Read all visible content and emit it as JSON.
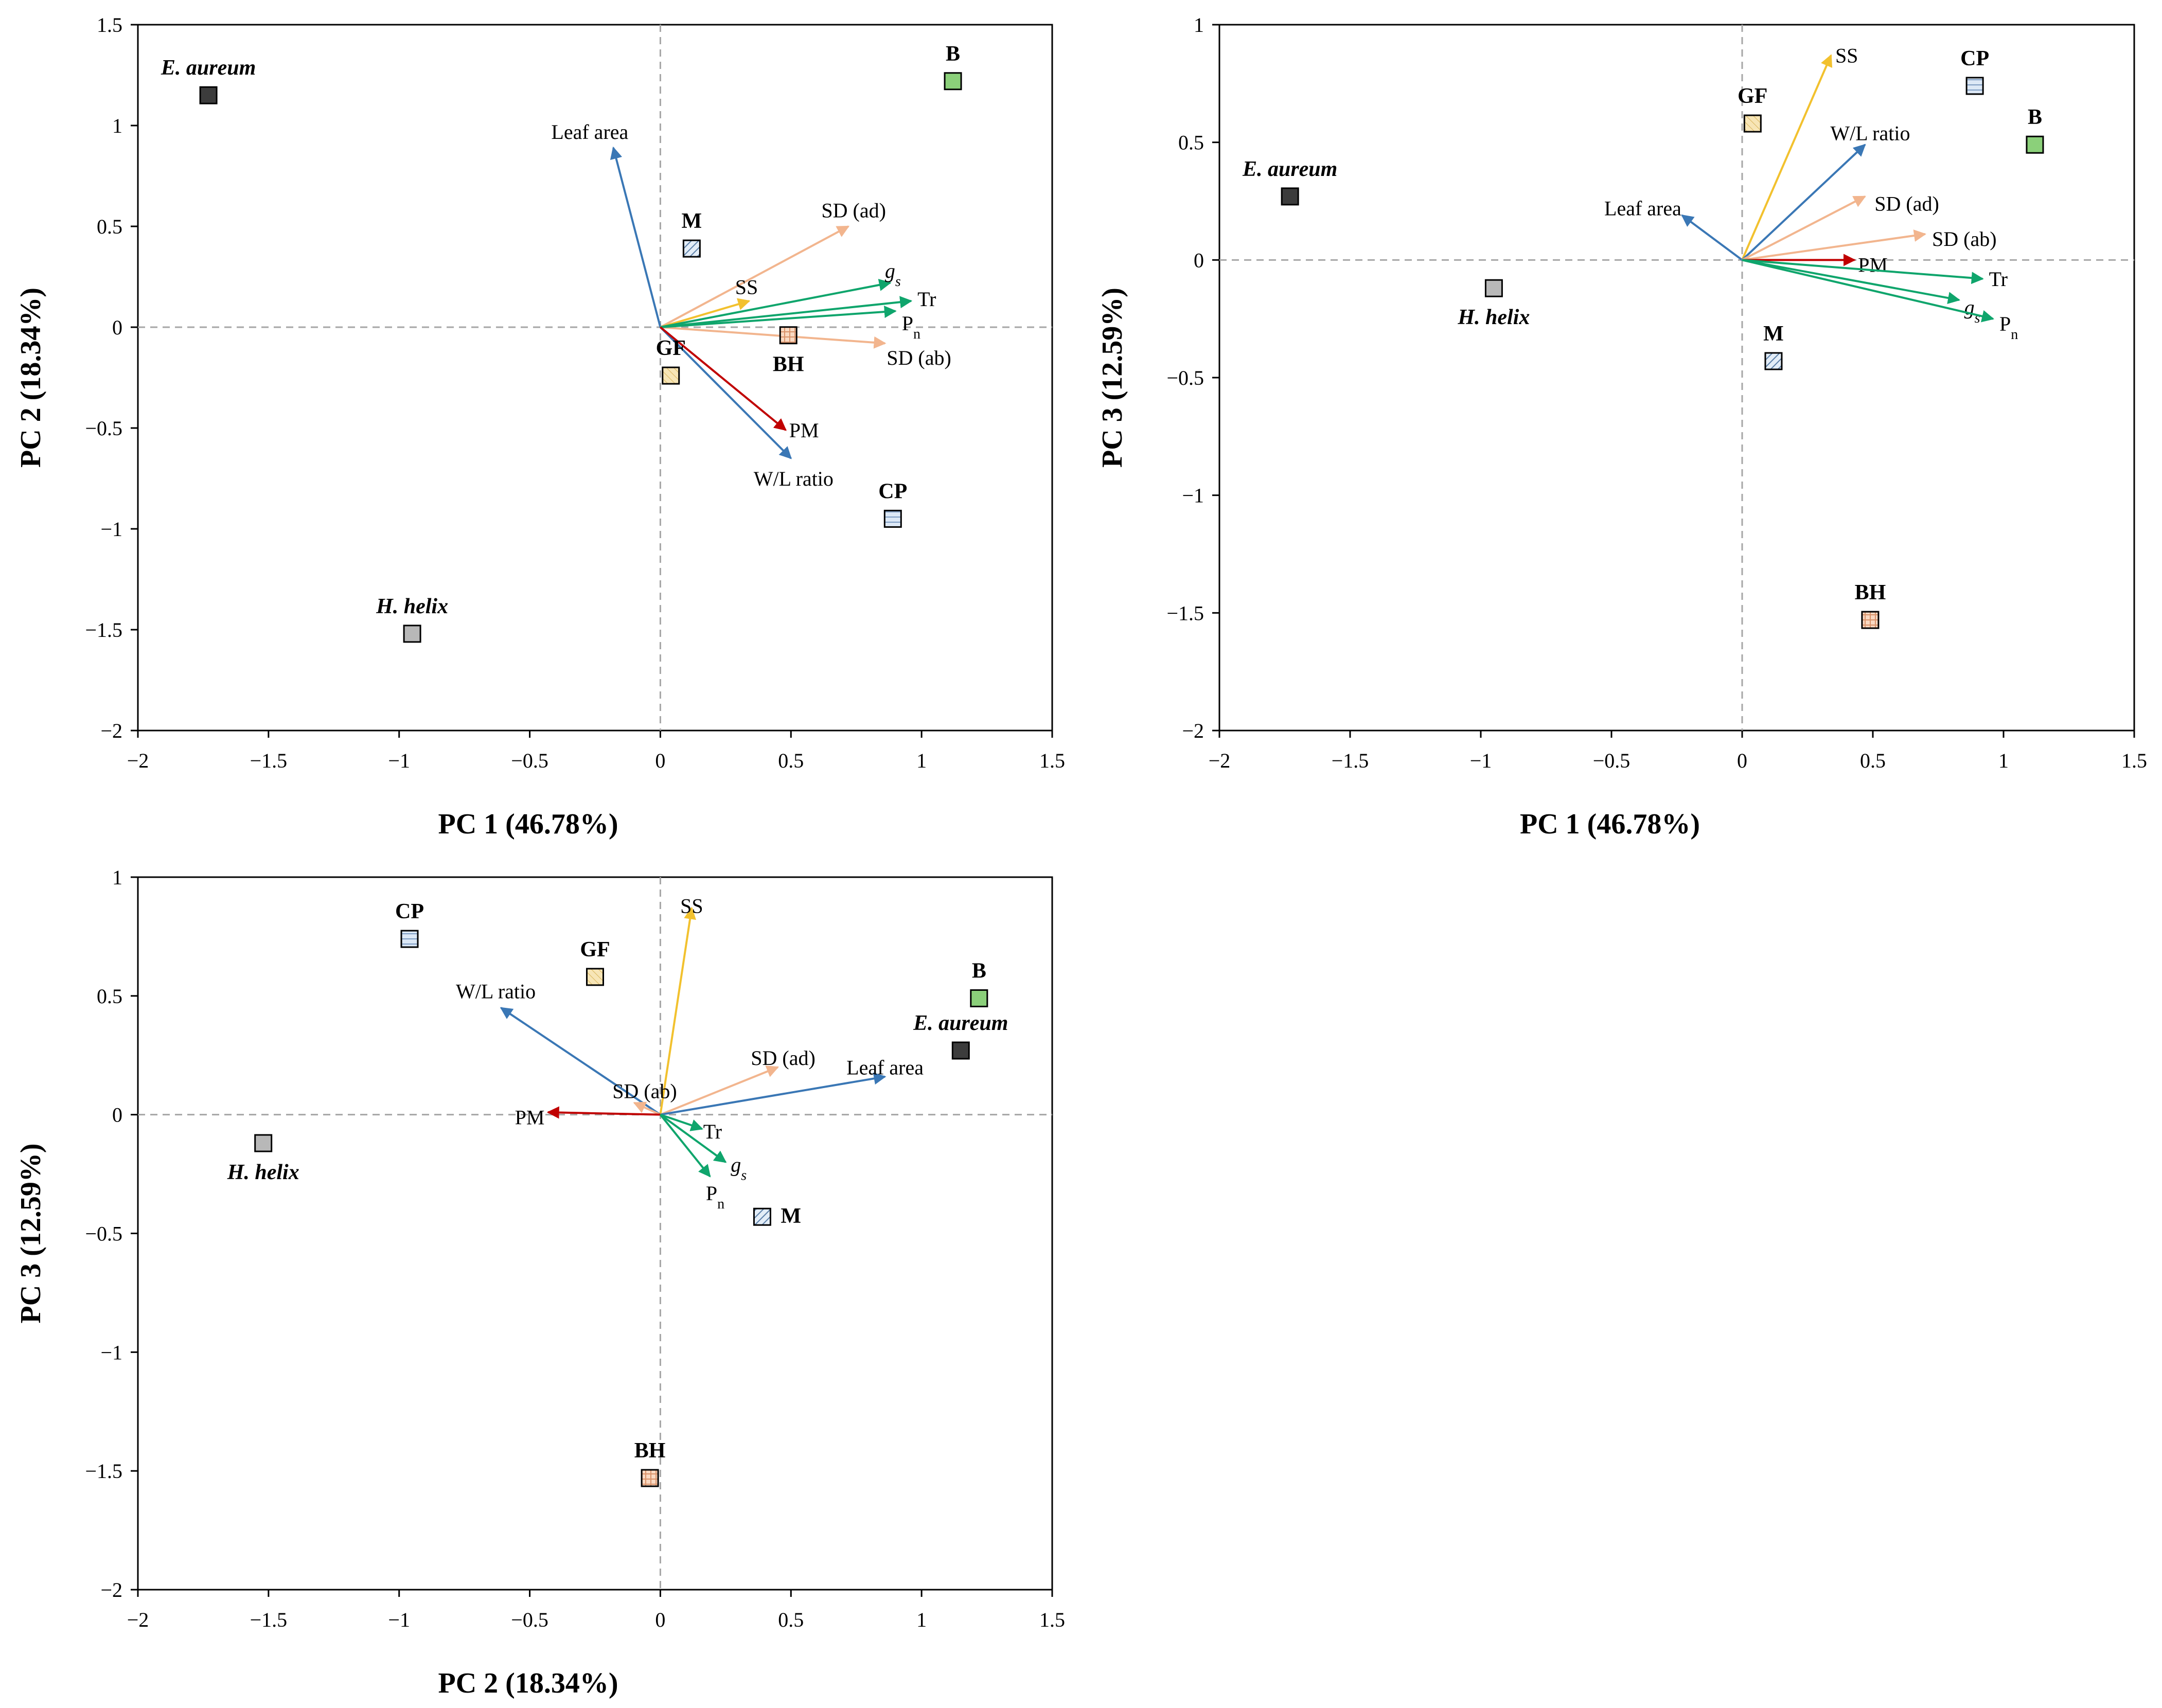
{
  "colors": {
    "blue": "#3A77B5",
    "orange": "#F2B58E",
    "green": "#0FA56C",
    "yellow": "#F2C12E",
    "red": "#C00000",
    "sq_dark": "#3C3C3C",
    "sq_gray": "#B8B8B8",
    "sq_green": "#8BD07A",
    "sq_blue": "#DCE8F6",
    "sq_yellow": "#F7E5B6",
    "sq_peach": "#F9D9C2",
    "sq_bluelight": "#E3EDF7"
  },
  "chart_data": [
    {
      "type": "scatter",
      "title": "",
      "xlabel": "PC 1 (46.78%)",
      "ylabel": "PC 2 (18.34%)",
      "xlim": [
        -2,
        1.5
      ],
      "ylim": [
        -2,
        1.5
      ],
      "xticks": [
        -2,
        -1.5,
        -1,
        -0.5,
        0,
        0.5,
        1,
        1.5
      ],
      "yticks": [
        -2,
        -1.5,
        -1,
        -0.5,
        0,
        0.5,
        1,
        1.5
      ],
      "xtick_labels": [
        "−2",
        "−1.5",
        "−1",
        "−0.5",
        "0",
        "0.5",
        "1",
        "1.5"
      ],
      "ytick_labels": [
        "−2",
        "−1.5",
        "−1",
        "−0.5",
        "0",
        "0.5",
        "1",
        "1.5"
      ],
      "points": [
        {
          "label": "E. aureum",
          "x": -1.73,
          "y": 1.15,
          "style": "dark",
          "italic": true,
          "pos": "above"
        },
        {
          "label": "B",
          "x": 1.12,
          "y": 1.22,
          "style": "green",
          "italic": false,
          "pos": "above"
        },
        {
          "label": "M",
          "x": 0.12,
          "y": 0.39,
          "style": "hatch",
          "italic": false,
          "pos": "above"
        },
        {
          "label": "BH",
          "x": 0.49,
          "y": -0.04,
          "style": "peach",
          "italic": false,
          "pos": "below"
        },
        {
          "label": "GF",
          "x": 0.04,
          "y": -0.24,
          "style": "yellow",
          "italic": false,
          "pos": "above"
        },
        {
          "label": "CP",
          "x": 0.89,
          "y": -0.95,
          "style": "blue",
          "italic": false,
          "pos": "above"
        },
        {
          "label": "H. helix",
          "x": -0.95,
          "y": -1.52,
          "style": "gray",
          "italic": true,
          "pos": "above"
        }
      ],
      "vectors": [
        {
          "label": "Leaf area",
          "x": -0.18,
          "y": 0.89,
          "color": "blue",
          "lx": -0.27,
          "ly": 0.97
        },
        {
          "label": "W/L ratio",
          "x": 0.5,
          "y": -0.65,
          "color": "blue",
          "lx": 0.51,
          "ly": -0.75
        },
        {
          "label": "SD (ad)",
          "x": 0.72,
          "y": 0.5,
          "color": "orange",
          "lx": 0.74,
          "ly": 0.58
        },
        {
          "label": "SD (ab)",
          "x": 0.86,
          "y": -0.08,
          "color": "orange",
          "lx": 0.99,
          "ly": -0.15
        },
        {
          "label": "SS",
          "x": 0.34,
          "y": 0.13,
          "color": "yellow",
          "lx": 0.33,
          "ly": 0.2
        },
        {
          "label": "gs",
          "x": 0.88,
          "y": 0.22,
          "color": "green",
          "lx": 0.89,
          "ly": 0.28
        },
        {
          "label": "Tr",
          "x": 0.96,
          "y": 0.13,
          "color": "green",
          "lx": 1.02,
          "ly": 0.14
        },
        {
          "label": "Pn",
          "x": 0.9,
          "y": 0.08,
          "color": "green",
          "lx": 0.96,
          "ly": 0.02
        },
        {
          "label": "PM",
          "x": 0.48,
          "y": -0.51,
          "color": "red",
          "lx": 0.55,
          "ly": -0.51
        }
      ]
    },
    {
      "type": "scatter",
      "title": "",
      "xlabel": "PC 1 (46.78%)",
      "ylabel": "PC 3 (12.59%)",
      "xlim": [
        -2,
        1.5
      ],
      "ylim": [
        -2,
        1
      ],
      "xticks": [
        -2,
        -1.5,
        -1,
        -0.5,
        0,
        0.5,
        1,
        1.5
      ],
      "yticks": [
        -2,
        -1.5,
        -1,
        -0.5,
        0,
        0.5,
        1
      ],
      "xtick_labels": [
        "−2",
        "−1.5",
        "−1",
        "−0.5",
        "0",
        "0.5",
        "1",
        "1.5"
      ],
      "ytick_labels": [
        "−2",
        "−1.5",
        "−1",
        "−0.5",
        "0",
        "0.5",
        "1"
      ],
      "points": [
        {
          "label": "E. aureum",
          "x": -1.73,
          "y": 0.27,
          "style": "dark",
          "italic": true,
          "pos": "above"
        },
        {
          "label": "CP",
          "x": 0.89,
          "y": 0.74,
          "style": "blue",
          "italic": false,
          "pos": "above"
        },
        {
          "label": "B",
          "x": 1.12,
          "y": 0.49,
          "style": "green",
          "italic": false,
          "pos": "above"
        },
        {
          "label": "GF",
          "x": 0.04,
          "y": 0.58,
          "style": "yellow",
          "italic": false,
          "pos": "above"
        },
        {
          "label": "H. helix",
          "x": -0.95,
          "y": -0.12,
          "style": "gray",
          "italic": true,
          "pos": "below"
        },
        {
          "label": "M",
          "x": 0.12,
          "y": -0.43,
          "style": "hatch",
          "italic": false,
          "pos": "above"
        },
        {
          "label": "BH",
          "x": 0.49,
          "y": -1.53,
          "style": "peach",
          "italic": false,
          "pos": "above"
        }
      ],
      "vectors": [
        {
          "label": "SS",
          "x": 0.34,
          "y": 0.87,
          "color": "yellow",
          "lx": 0.4,
          "ly": 0.87
        },
        {
          "label": "W/L ratio",
          "x": 0.47,
          "y": 0.49,
          "color": "blue",
          "lx": 0.49,
          "ly": 0.54
        },
        {
          "label": "Leaf area",
          "x": -0.23,
          "y": 0.19,
          "color": "blue",
          "lx": -0.38,
          "ly": 0.22
        },
        {
          "label": "SD (ad)",
          "x": 0.47,
          "y": 0.27,
          "color": "orange",
          "lx": 0.63,
          "ly": 0.24
        },
        {
          "label": "SD (ab)",
          "x": 0.7,
          "y": 0.11,
          "color": "orange",
          "lx": 0.85,
          "ly": 0.09
        },
        {
          "label": "PM",
          "x": 0.43,
          "y": 0.0,
          "color": "red",
          "lx": 0.5,
          "ly": -0.02
        },
        {
          "label": "Tr",
          "x": 0.92,
          "y": -0.08,
          "color": "green",
          "lx": 0.98,
          "ly": -0.08
        },
        {
          "label": "gs",
          "x": 0.83,
          "y": -0.17,
          "color": "green",
          "lx": 0.88,
          "ly": -0.2
        },
        {
          "label": "Pn",
          "x": 0.96,
          "y": -0.25,
          "color": "green",
          "lx": 1.02,
          "ly": -0.27
        }
      ]
    },
    {
      "type": "scatter",
      "title": "",
      "xlabel": "PC 2 (18.34%)",
      "ylabel": "PC 3 (12.59%)",
      "xlim": [
        -2,
        1.5
      ],
      "ylim": [
        -2,
        1
      ],
      "xticks": [
        -2,
        -1.5,
        -1,
        -0.5,
        0,
        0.5,
        1,
        1.5
      ],
      "yticks": [
        -2,
        -1.5,
        -1,
        -0.5,
        0,
        0.5,
        1
      ],
      "xtick_labels": [
        "−2",
        "−1.5",
        "−1",
        "−0.5",
        "0",
        "0.5",
        "1",
        "1.5"
      ],
      "ytick_labels": [
        "−2",
        "−1.5",
        "−1",
        "−0.5",
        "0",
        "0.5",
        "1"
      ],
      "points": [
        {
          "label": "CP",
          "x": -0.96,
          "y": 0.74,
          "style": "blue",
          "italic": false,
          "pos": "above"
        },
        {
          "label": "GF",
          "x": -0.25,
          "y": 0.58,
          "style": "yellow",
          "italic": false,
          "pos": "above"
        },
        {
          "label": "B",
          "x": 1.22,
          "y": 0.49,
          "style": "green",
          "italic": false,
          "pos": "above"
        },
        {
          "label": "E. aureum",
          "x": 1.15,
          "y": 0.27,
          "style": "dark",
          "italic": true,
          "pos": "above"
        },
        {
          "label": "H. helix",
          "x": -1.52,
          "y": -0.12,
          "style": "gray",
          "italic": true,
          "pos": "below"
        },
        {
          "label": "M",
          "x": 0.39,
          "y": -0.43,
          "style": "hatch",
          "italic": false,
          "pos": "right"
        },
        {
          "label": "BH",
          "x": -0.04,
          "y": -1.53,
          "style": "peach",
          "italic": false,
          "pos": "above"
        }
      ],
      "vectors": [
        {
          "label": "SS",
          "x": 0.12,
          "y": 0.87,
          "color": "yellow",
          "lx": 0.12,
          "ly": 0.88
        },
        {
          "label": "W/L ratio",
          "x": -0.61,
          "y": 0.45,
          "color": "blue",
          "lx": -0.63,
          "ly": 0.52
        },
        {
          "label": "SD (ad)",
          "x": 0.45,
          "y": 0.2,
          "color": "orange",
          "lx": 0.47,
          "ly": 0.24
        },
        {
          "label": "Leaf area",
          "x": 0.86,
          "y": 0.16,
          "color": "blue",
          "lx": 0.86,
          "ly": 0.2
        },
        {
          "label": "SD (ab)",
          "x": -0.1,
          "y": 0.05,
          "color": "orange",
          "lx": -0.06,
          "ly": 0.1
        },
        {
          "label": "PM",
          "x": -0.43,
          "y": 0.01,
          "color": "red",
          "lx": -0.5,
          "ly": -0.01
        },
        {
          "label": "Tr",
          "x": 0.16,
          "y": -0.06,
          "color": "green",
          "lx": 0.2,
          "ly": -0.07
        },
        {
          "label": "gs",
          "x": 0.25,
          "y": -0.2,
          "color": "green",
          "lx": 0.3,
          "ly": -0.21
        },
        {
          "label": "Pn",
          "x": 0.19,
          "y": -0.26,
          "color": "green",
          "lx": 0.21,
          "ly": -0.33
        }
      ]
    }
  ]
}
